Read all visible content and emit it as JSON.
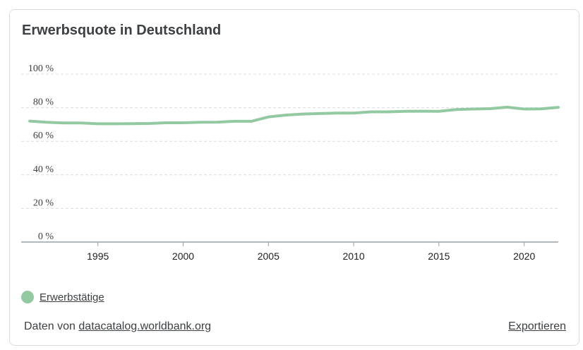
{
  "card": {
    "title": "Erwerbsquote in Deutschland",
    "source_prefix": "Daten von ",
    "source_link": "datacatalog.worldbank.org",
    "export_label": "Exportieren"
  },
  "colors": {
    "series": "#93c9a0",
    "grid": "#dadce0",
    "axis": "#9aa0a6"
  },
  "chart_data": {
    "type": "line",
    "title": "Erwerbsquote in Deutschland",
    "xlabel": "",
    "ylabel": "",
    "ylim": [
      0,
      100
    ],
    "xlim": [
      1990.5,
      2022
    ],
    "y_ticks": [
      0,
      20,
      40,
      60,
      80,
      100
    ],
    "y_tick_labels": [
      "0 %",
      "20 %",
      "40 %",
      "60 %",
      "80 %",
      "100 %"
    ],
    "x_ticks": [
      1995,
      2000,
      2005,
      2010,
      2015,
      2020
    ],
    "x_tick_labels": [
      "1995",
      "2000",
      "2005",
      "2010",
      "2015",
      "2020"
    ],
    "grid": true,
    "legend_position": "bottom-left",
    "series": [
      {
        "name": "Erwerbstätige",
        "x": [
          1991,
          1992,
          1993,
          1994,
          1995,
          1996,
          1997,
          1998,
          1999,
          2000,
          2001,
          2002,
          2003,
          2004,
          2005,
          2006,
          2007,
          2008,
          2009,
          2010,
          2011,
          2012,
          2013,
          2014,
          2015,
          2016,
          2017,
          2018,
          2019,
          2020,
          2021,
          2022
        ],
        "values": [
          72.0,
          71.3,
          70.9,
          70.9,
          70.4,
          70.4,
          70.5,
          70.6,
          71.0,
          71.0,
          71.3,
          71.4,
          71.9,
          71.9,
          74.5,
          75.6,
          76.2,
          76.5,
          76.8,
          76.8,
          77.5,
          77.5,
          77.8,
          77.9,
          77.8,
          78.9,
          79.2,
          79.4,
          80.3,
          79.2,
          79.3,
          80.2
        ]
      }
    ]
  }
}
